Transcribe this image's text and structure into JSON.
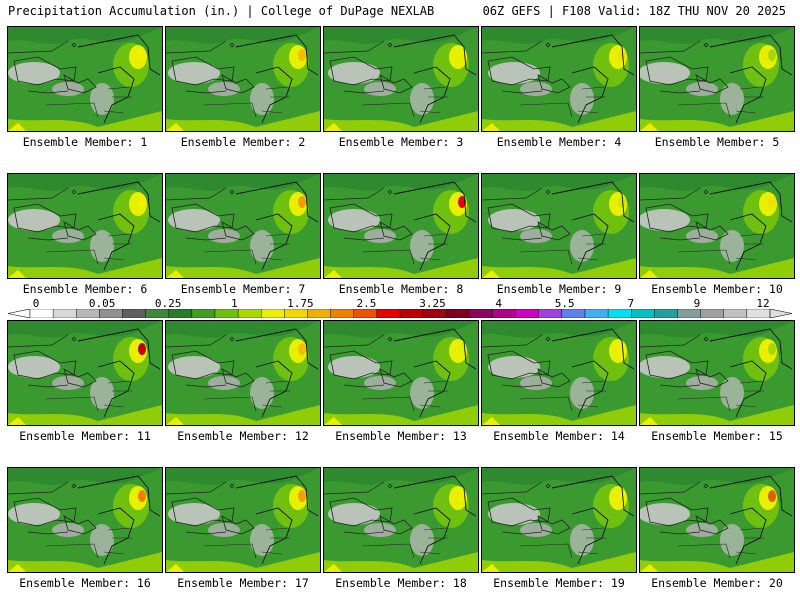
{
  "header": {
    "title": "Precipitation Accumulation (in.) | College of DuPage NEXLAB",
    "valid": "06Z GEFS | F108 Valid: 18Z THU NOV 20 2025"
  },
  "caption_prefix": "Ensemble Member: ",
  "members": [
    {
      "id": 1,
      "label": "Ensemble Member: 1",
      "max_color": "#f0f000"
    },
    {
      "id": 2,
      "label": "Ensemble Member: 2",
      "max_color": "#f0c000"
    },
    {
      "id": 3,
      "label": "Ensemble Member: 3",
      "max_color": "#e8f000"
    },
    {
      "id": 4,
      "label": "Ensemble Member: 4",
      "max_color": "#f0e000"
    },
    {
      "id": 5,
      "label": "Ensemble Member: 5",
      "max_color": "#a8d800"
    },
    {
      "id": 6,
      "label": "Ensemble Member: 6",
      "max_color": "#f0f000"
    },
    {
      "id": 7,
      "label": "Ensemble Member: 7",
      "max_color": "#f0a000"
    },
    {
      "id": 8,
      "label": "Ensemble Member: 8",
      "max_color": "#e80000"
    },
    {
      "id": 9,
      "label": "Ensemble Member: 9",
      "max_color": "#d0e800"
    },
    {
      "id": 10,
      "label": "Ensemble Member: 10",
      "max_color": "#f0e000"
    },
    {
      "id": 11,
      "label": "Ensemble Member: 11",
      "max_color": "#c00000"
    },
    {
      "id": 12,
      "label": "Ensemble Member: 12",
      "max_color": "#f0c000"
    },
    {
      "id": 13,
      "label": "Ensemble Member: 13",
      "max_color": "#e0f000"
    },
    {
      "id": 14,
      "label": "Ensemble Member: 14",
      "max_color": "#f0f000"
    },
    {
      "id": 15,
      "label": "Ensemble Member: 15",
      "max_color": "#a8d800"
    },
    {
      "id": 16,
      "label": "Ensemble Member: 16",
      "max_color": "#f08000"
    },
    {
      "id": 17,
      "label": "Ensemble Member: 17",
      "max_color": "#f0a000"
    },
    {
      "id": 18,
      "label": "Ensemble Member: 18",
      "max_color": "#f0f000"
    },
    {
      "id": 19,
      "label": "Ensemble Member: 19",
      "max_color": "#f0f000"
    },
    {
      "id": 20,
      "label": "Ensemble Member: 20",
      "max_color": "#e06000"
    }
  ],
  "colorbar": {
    "labels": [
      "0",
      "0.05",
      "0.25",
      "1",
      "1.75",
      "2.5",
      "3.25",
      "4",
      "5.5",
      "7",
      "9",
      "12"
    ],
    "colors": [
      "#ffffff",
      "#d8d8d8",
      "#b8b8b8",
      "#909090",
      "#606060",
      "#3a8a3a",
      "#2a7a2a",
      "#40a020",
      "#70c010",
      "#a8d800",
      "#e8f000",
      "#f0d800",
      "#f0b000",
      "#f08000",
      "#f05000",
      "#e80000",
      "#c00000",
      "#a00010",
      "#800020",
      "#900060",
      "#b00090",
      "#d000c0",
      "#a040e0",
      "#6080f0",
      "#40b0f0",
      "#00e0f0",
      "#00c0c0",
      "#20a0a0",
      "#80a0a0",
      "#a0a0a0",
      "#c0c0c0",
      "#e0e0e0"
    ]
  }
}
